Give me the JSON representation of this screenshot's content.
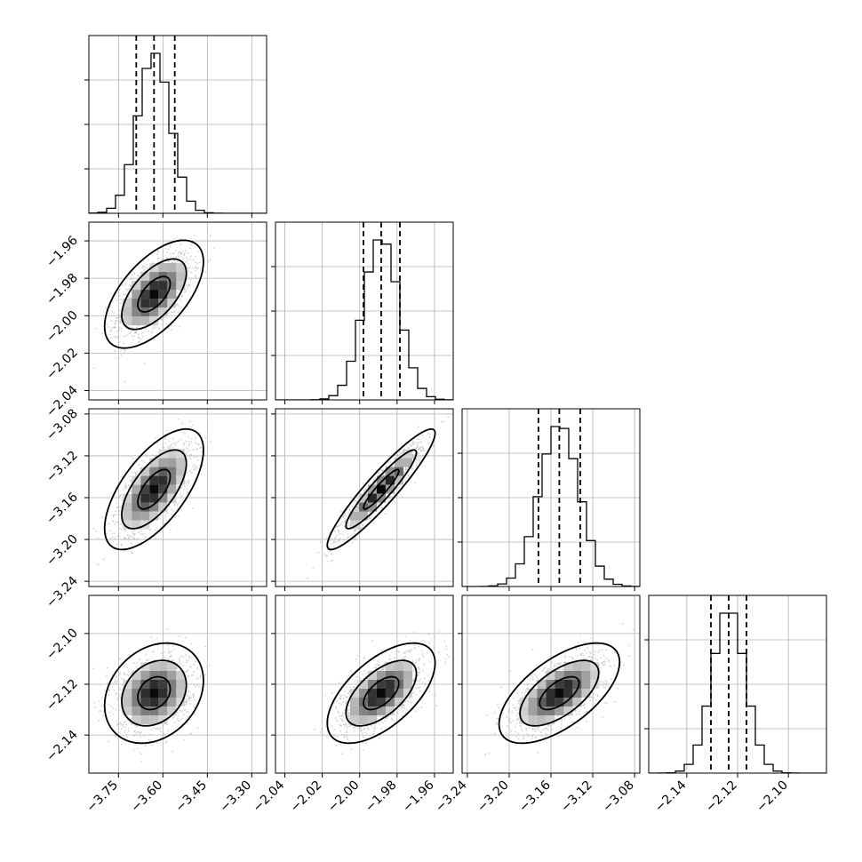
{
  "chart_data": {
    "type": "corner",
    "description_of_parameters": 4,
    "grid": true,
    "colors": {
      "hist_line": "#000000",
      "scatter_points": "#b0b0b0",
      "density_dark": "#000000",
      "density_light": "#ffffff",
      "grid": "#b0b0b0",
      "quantile_line": "#000000"
    },
    "parameters": [
      {
        "range": [
          -3.85,
          -3.25
        ],
        "ticks": [
          -3.75,
          -3.6,
          -3.45,
          -3.3
        ],
        "tick_labels": [
          "−3.75",
          "−3.60",
          "−3.45",
          "−3.30"
        ],
        "mean": -3.63,
        "sd": 0.055,
        "quantiles": [
          -3.69,
          -3.63,
          -3.56
        ]
      },
      {
        "range": [
          -2.045,
          -1.95
        ],
        "ticks": [
          -2.04,
          -2.02,
          -2.0,
          -1.98,
          -1.96
        ],
        "tick_labels": [
          "−2.04",
          "−2.02",
          "−2.00",
          "−1.98",
          "−1.96"
        ],
        "mean": -1.9885,
        "sd": 0.0095,
        "quantiles": [
          -1.998,
          -1.9885,
          -1.9785
        ]
      },
      {
        "range": [
          -3.245,
          -3.075
        ],
        "ticks": [
          -3.24,
          -3.2,
          -3.16,
          -3.12,
          -3.08
        ],
        "tick_labels": [
          "−3.24",
          "−3.20",
          "−3.16",
          "−3.12",
          "−3.08"
        ],
        "mean": -3.152,
        "sd": 0.019,
        "quantiles": [
          -3.172,
          -3.152,
          -3.132
        ]
      },
      {
        "range": [
          -2.155,
          -2.085
        ],
        "ticks": [
          -2.14,
          -2.12,
          -2.1
        ],
        "tick_labels": [
          "−2.14",
          "−2.12",
          "−2.10"
        ],
        "mean": -2.1235,
        "sd": 0.0065,
        "quantiles": [
          -2.1305,
          -2.1235,
          -2.1165
        ]
      }
    ],
    "correlations": {
      "1-0": 0.6,
      "2-0": 0.65,
      "2-1": 0.93,
      "3-0": 0.25,
      "3-1": 0.6,
      "3-2": 0.62
    },
    "hist_bins": 20,
    "contour_levels": [
      0.39,
      0.86,
      0.99
    ]
  }
}
